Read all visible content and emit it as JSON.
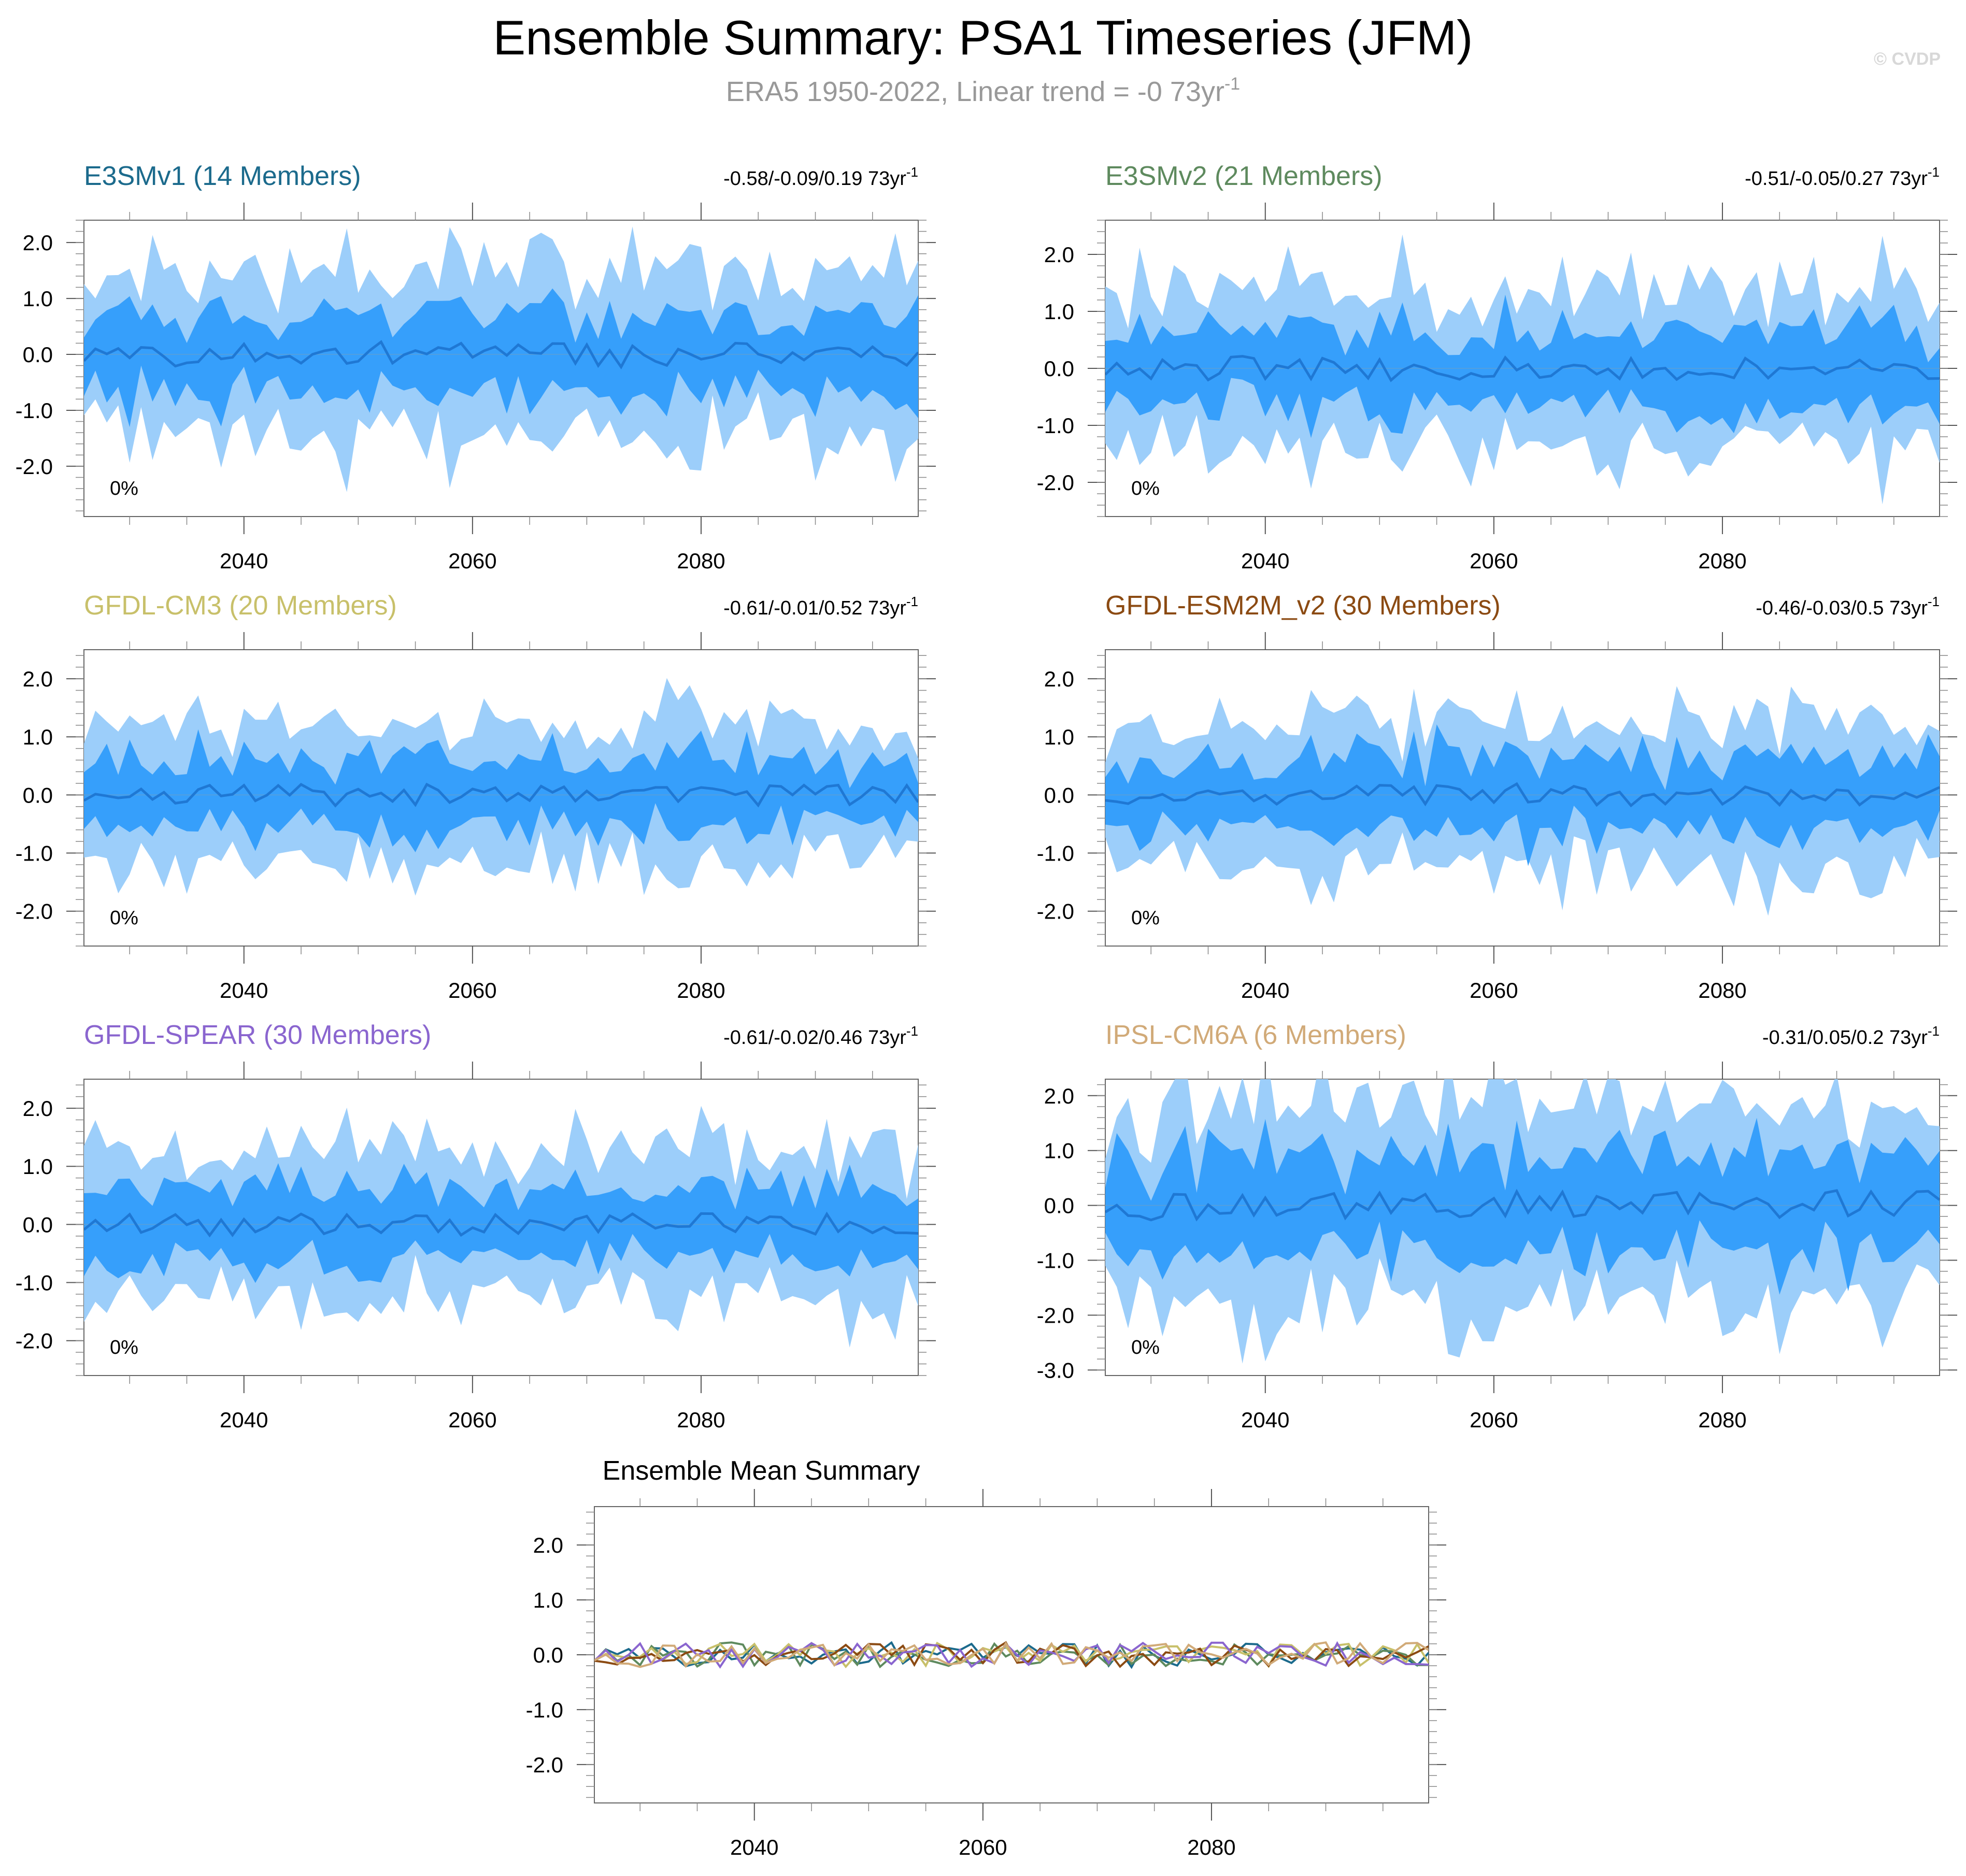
{
  "title": "Ensemble Summary: PSA1 Timeseries (JFM)",
  "subtitle": {
    "text": "ERA5 1950-2022, Linear trend = -0 73yr",
    "superscript": "-1"
  },
  "watermark": "© CVDP",
  "colors": {
    "outer_band": "#9ccefa",
    "inner_band": "#369ffb",
    "mean_line": "#1f78d4",
    "axis": "#555555",
    "subtitle": "#999999",
    "watermark": "#d8d8d8"
  },
  "chart_data": [
    {
      "type": "area",
      "panel": "E3SMv1",
      "title": "E3SMv1 (14 Members)",
      "title_color": "#1b6a8c",
      "trend_label": "-0.58/-0.09/0.19 73yr",
      "trend_superscript": "-1",
      "percent_label": "0%",
      "xlim": [
        2026,
        2099
      ],
      "ylim": [
        -2.9,
        2.4
      ],
      "yticks": [
        -2.0,
        -1.0,
        0.0,
        1.0,
        2.0
      ],
      "ytick_labels": [
        "-2.0",
        "-1.0",
        "0.0",
        "1.0",
        "2.0"
      ],
      "xticks": [
        2040,
        2060,
        2080
      ],
      "xtick_labels": [
        "2040",
        "2060",
        "2080"
      ],
      "amplitude": 1.0,
      "seed": 11
    },
    {
      "type": "area",
      "panel": "E3SMv2",
      "title": "E3SMv2 (21 Members)",
      "title_color": "#5e8a5e",
      "trend_label": "-0.51/-0.05/0.27 73yr",
      "trend_superscript": "-1",
      "percent_label": "0%",
      "xlim": [
        2026,
        2099
      ],
      "ylim": [
        -2.6,
        2.6
      ],
      "yticks": [
        -2.0,
        -1.0,
        0.0,
        1.0,
        2.0
      ],
      "ytick_labels": [
        "-2.0",
        "-1.0",
        "0.0",
        "1.0",
        "2.0"
      ],
      "xticks": [
        2040,
        2060,
        2080
      ],
      "xtick_labels": [
        "2040",
        "2060",
        "2080"
      ],
      "amplitude": 0.95,
      "seed": 23
    },
    {
      "type": "area",
      "panel": "GFDL-CM3",
      "title": "GFDL-CM3 (20 Members)",
      "title_color": "#c8c06a",
      "trend_label": "-0.61/-0.01/0.52 73yr",
      "trend_superscript": "-1",
      "percent_label": "0%",
      "xlim": [
        2026,
        2099
      ],
      "ylim": [
        -2.6,
        2.5
      ],
      "yticks": [
        -2.0,
        -1.0,
        0.0,
        1.0,
        2.0
      ],
      "ytick_labels": [
        "-2.0",
        "-1.0",
        "0.0",
        "1.0",
        "2.0"
      ],
      "xticks": [
        2040,
        2060,
        2080
      ],
      "xtick_labels": [
        "2040",
        "2060",
        "2080"
      ],
      "amplitude": 0.85,
      "seed": 37
    },
    {
      "type": "area",
      "panel": "GFDL-ESM2M_v2",
      "title": "GFDL-ESM2M_v2 (30 Members)",
      "title_color": "#8b4a12",
      "trend_label": "-0.46/-0.03/0.5 73yr",
      "trend_superscript": "-1",
      "percent_label": "0%",
      "xlim": [
        2026,
        2099
      ],
      "ylim": [
        -2.6,
        2.5
      ],
      "yticks": [
        -2.0,
        -1.0,
        0.0,
        1.0,
        2.0
      ],
      "ytick_labels": [
        "-2.0",
        "-1.0",
        "0.0",
        "1.0",
        "2.0"
      ],
      "xticks": [
        2040,
        2060,
        2080
      ],
      "xtick_labels": [
        "2040",
        "2060",
        "2080"
      ],
      "amplitude": 0.85,
      "seed": 53
    },
    {
      "type": "area",
      "panel": "GFDL-SPEAR",
      "title": "GFDL-SPEAR (30 Members)",
      "title_color": "#8a65cf",
      "trend_label": "-0.61/-0.02/0.46 73yr",
      "trend_superscript": "-1",
      "percent_label": "0%",
      "xlim": [
        2026,
        2099
      ],
      "ylim": [
        -2.6,
        2.5
      ],
      "yticks": [
        -2.0,
        -1.0,
        0.0,
        1.0,
        2.0
      ],
      "ytick_labels": [
        "-2.0",
        "-1.0",
        "0.0",
        "1.0",
        "2.0"
      ],
      "xticks": [
        2040,
        2060,
        2080
      ],
      "xtick_labels": [
        "2040",
        "2060",
        "2080"
      ],
      "amplitude": 0.85,
      "seed": 71
    },
    {
      "type": "area",
      "panel": "IPSL-CM6A",
      "title": "IPSL-CM6A (6 Members)",
      "title_color": "#d1aa78",
      "trend_label": "-0.31/0.05/0.2 73yr",
      "trend_superscript": "-1",
      "percent_label": "0%",
      "xlim": [
        2026,
        2099
      ],
      "ylim": [
        -3.1,
        2.3
      ],
      "yticks": [
        -3.0,
        -2.0,
        -1.0,
        0.0,
        1.0,
        2.0
      ],
      "ytick_labels": [
        "-3.0",
        "-2.0",
        "-1.0",
        "0.0",
        "1.0",
        "2.0"
      ],
      "xticks": [
        2040,
        2060,
        2080
      ],
      "xtick_labels": [
        "2040",
        "2060",
        "2080"
      ],
      "amplitude": 1.2,
      "seed": 97
    },
    {
      "type": "line",
      "panel": "Ensemble Mean",
      "title": "Ensemble Mean Summary",
      "xlim": [
        2026,
        2099
      ],
      "ylim": [
        -2.7,
        2.7
      ],
      "yticks": [
        -2.0,
        -1.0,
        0.0,
        1.0,
        2.0
      ],
      "ytick_labels": [
        "-2.0",
        "-1.0",
        "0.0",
        "1.0",
        "2.0"
      ],
      "xticks": [
        2040,
        2060,
        2080
      ],
      "xtick_labels": [
        "2040",
        "2060",
        "2080"
      ],
      "series": [
        {
          "name": "E3SMv1",
          "color": "#1b6a8c",
          "seed": 11
        },
        {
          "name": "E3SMv2",
          "color": "#5e8a5e",
          "seed": 23
        },
        {
          "name": "GFDL-CM3",
          "color": "#c8c06a",
          "seed": 37
        },
        {
          "name": "GFDL-ESM2M_v2",
          "color": "#8b4a12",
          "seed": 53
        },
        {
          "name": "GFDL-SPEAR",
          "color": "#8a65cf",
          "seed": 71
        },
        {
          "name": "IPSL-CM6A",
          "color": "#d1aa78",
          "seed": 97
        }
      ]
    }
  ]
}
